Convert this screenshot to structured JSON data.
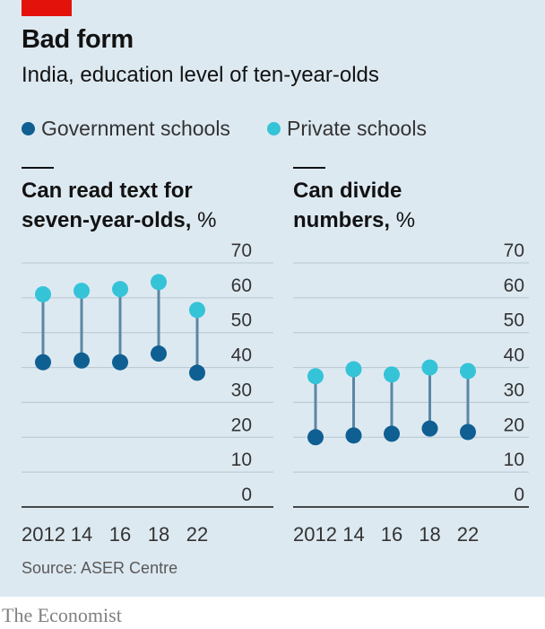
{
  "header": {
    "title": "Bad form",
    "subtitle": "India, education level of ten-year-olds"
  },
  "legend": [
    {
      "label": "Government schools",
      "color": "#0f5f92"
    },
    {
      "label": "Private schools",
      "color": "#35c3d8"
    }
  ],
  "chart_data": [
    {
      "type": "dot-range",
      "title": "Can read text for seven-year-olds,",
      "title_line1": "Can read text for",
      "title_line2": "seven-year-olds,",
      "unit": "%",
      "categories": [
        "2012",
        "14",
        "16",
        "18",
        "22"
      ],
      "ylim": [
        0,
        70
      ],
      "yticks": [
        0,
        10,
        20,
        30,
        40,
        50,
        60,
        70
      ],
      "grid": true,
      "series": [
        {
          "name": "Government schools",
          "values": [
            41.5,
            42,
            41.5,
            44,
            38.5
          ]
        },
        {
          "name": "Private schools",
          "values": [
            61,
            62,
            62.5,
            64.5,
            56.5
          ]
        }
      ]
    },
    {
      "type": "dot-range",
      "title": "Can divide numbers,",
      "title_line1": "Can divide",
      "title_line2": "numbers,",
      "unit": "%",
      "categories": [
        "2012",
        "14",
        "16",
        "18",
        "22"
      ],
      "ylim": [
        0,
        70
      ],
      "yticks": [
        0,
        10,
        20,
        30,
        40,
        50,
        60,
        70
      ],
      "grid": true,
      "series": [
        {
          "name": "Government schools",
          "values": [
            20,
            20.5,
            21,
            22.5,
            21.5
          ]
        },
        {
          "name": "Private schools",
          "values": [
            37.5,
            39.5,
            38,
            40,
            39
          ]
        }
      ]
    }
  ],
  "footer": {
    "source": "Source: ASER Centre",
    "brand": "The Economist"
  }
}
